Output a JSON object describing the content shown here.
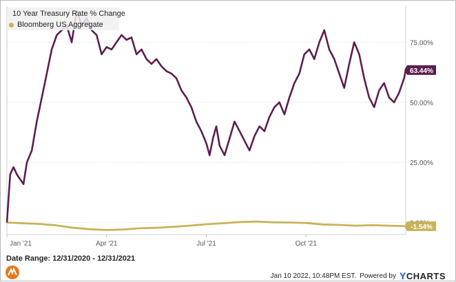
{
  "chart_data": {
    "type": "line",
    "ylim": [
      -5,
      90
    ],
    "y_ticks": [
      "0.00%",
      "25.00%",
      "50.00%",
      "75.00%"
    ],
    "x_ticks": [
      {
        "label": "Jan '21",
        "x": 0
      },
      {
        "label": "Apr '21",
        "x": 3
      },
      {
        "label": "Jul '21",
        "x": 6
      },
      {
        "label": "Oct '21",
        "x": 9
      }
    ],
    "grid": true,
    "legend_position": "top-left",
    "series": [
      {
        "name": "10 Year Treasury Rate % Change",
        "color": "#5b1e4f",
        "end_label": "63.44%",
        "x": [
          0,
          0.1,
          0.2,
          0.3,
          0.4,
          0.5,
          0.6,
          0.75,
          0.9,
          1.05,
          1.2,
          1.35,
          1.5,
          1.65,
          1.8,
          1.95,
          2.1,
          2.25,
          2.4,
          2.55,
          2.7,
          2.85,
          3.0,
          3.15,
          3.3,
          3.45,
          3.6,
          3.75,
          3.9,
          4.05,
          4.2,
          4.35,
          4.5,
          4.65,
          4.8,
          4.95,
          5.1,
          5.25,
          5.4,
          5.55,
          5.7,
          5.85,
          6.0,
          6.1,
          6.2,
          6.3,
          6.4,
          6.55,
          6.7,
          6.85,
          7.0,
          7.15,
          7.3,
          7.45,
          7.6,
          7.75,
          7.9,
          8.05,
          8.2,
          8.35,
          8.5,
          8.65,
          8.8,
          8.95,
          9.1,
          9.25,
          9.4,
          9.55,
          9.7,
          9.85,
          10.0,
          10.15,
          10.3,
          10.45,
          10.6,
          10.75,
          10.9,
          11.05,
          11.2,
          11.35,
          11.5,
          11.65,
          11.8,
          11.95,
          12.0
        ],
        "values": [
          0,
          20,
          23,
          20,
          18,
          16,
          25,
          30,
          42,
          52,
          62,
          72,
          78,
          80,
          82,
          75,
          88,
          82,
          85,
          80,
          78,
          70,
          73,
          72,
          75,
          78,
          76,
          77,
          70,
          72,
          68,
          66,
          68,
          65,
          63,
          62,
          60,
          55,
          52,
          48,
          42,
          38,
          33,
          28,
          35,
          40,
          32,
          28,
          35,
          42,
          38,
          34,
          30,
          36,
          40,
          38,
          44,
          48,
          50,
          45,
          52,
          58,
          62,
          70,
          72,
          68,
          75,
          80,
          72,
          68,
          62,
          56,
          66,
          75,
          70,
          60,
          52,
          48,
          55,
          58,
          52,
          50,
          54,
          60,
          63.44
        ]
      },
      {
        "name": "Bloomberg US Aggregate",
        "color": "#c8b35a",
        "end_label": "-1.54%",
        "x": [
          0,
          0.5,
          1,
          1.5,
          2,
          2.5,
          3,
          3.5,
          4,
          4.5,
          5,
          5.5,
          6,
          6.5,
          7,
          7.5,
          8,
          8.5,
          9,
          9.5,
          10,
          10.5,
          11,
          11.5,
          12
        ],
        "values": [
          0,
          -0.3,
          -0.6,
          -1.2,
          -2.2,
          -2.8,
          -3.1,
          -2.9,
          -2.4,
          -2.2,
          -1.8,
          -1.3,
          -0.7,
          -0.3,
          0.2,
          0.4,
          0.1,
          0.0,
          -0.2,
          -0.8,
          -1.0,
          -1.3,
          -1.1,
          -1.3,
          -1.54
        ]
      }
    ]
  },
  "footer": {
    "date_range": "Date Range: 12/31/2020 - 12/31/2021",
    "timestamp": "Jan 10 2022, 10:48PM EST.",
    "powered_by": "Powered by",
    "brand_y": "Y",
    "brand_rest": "CHARTS"
  }
}
